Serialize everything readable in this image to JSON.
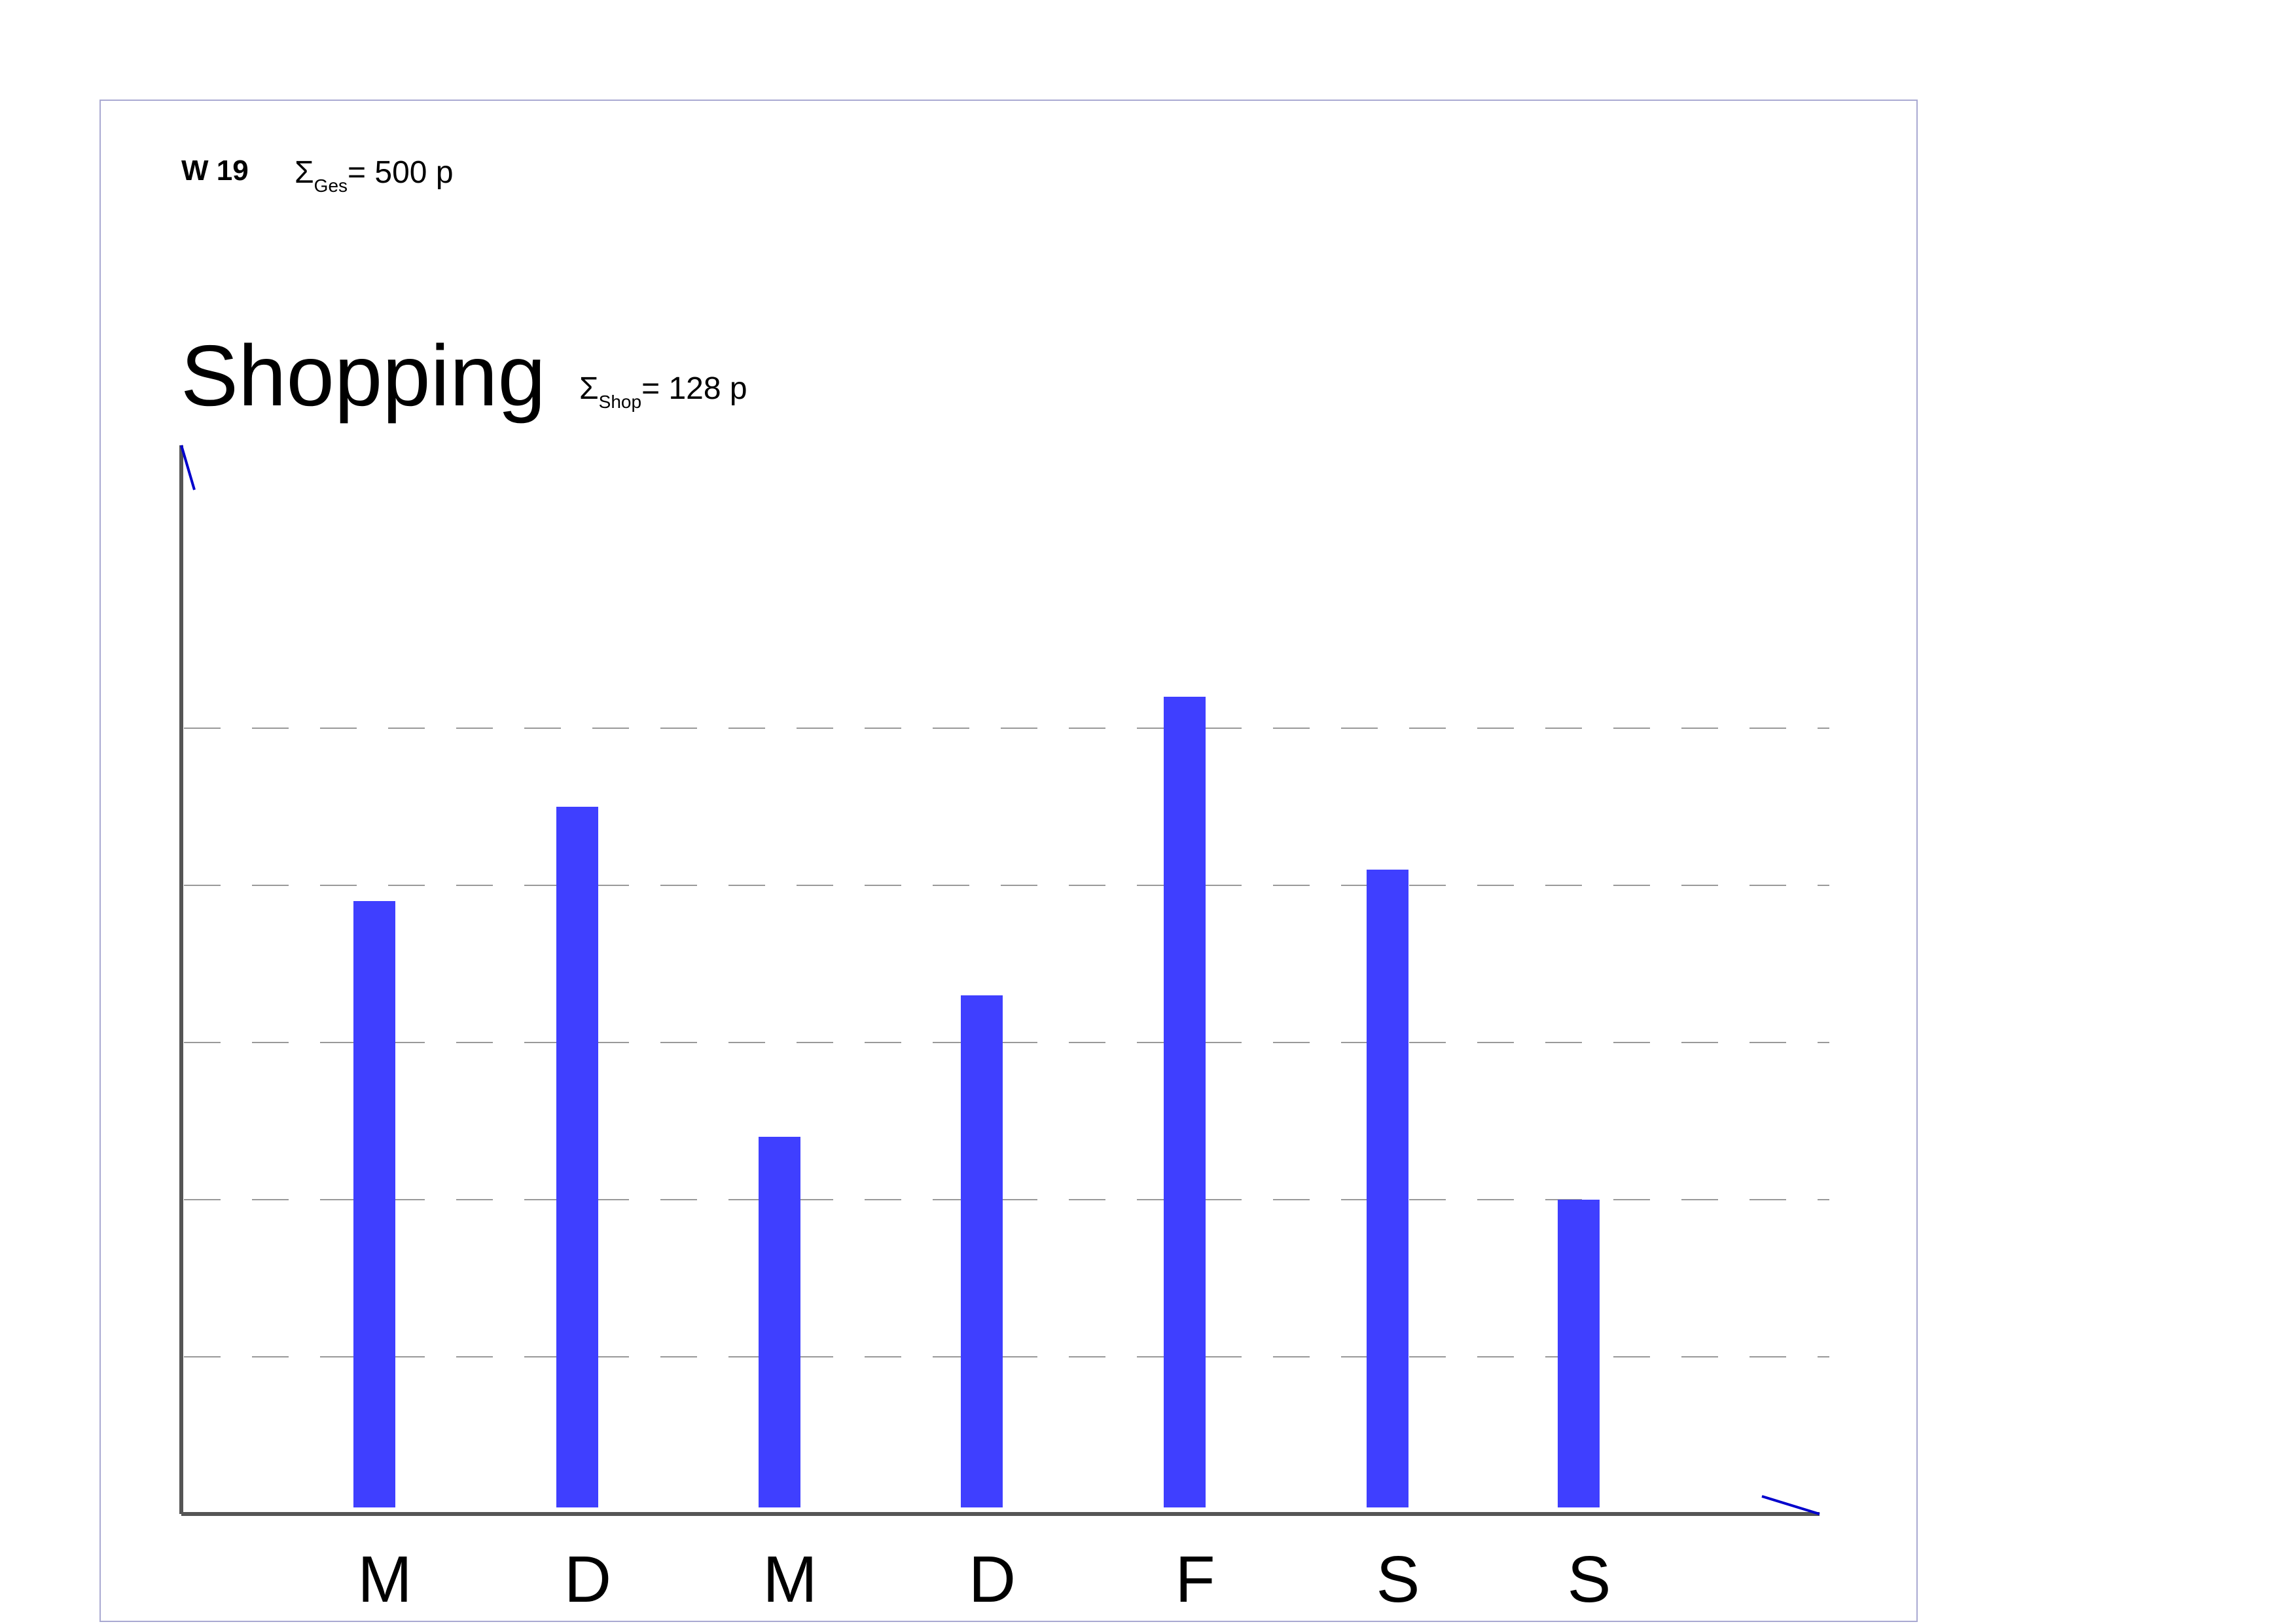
{
  "header": {
    "week": "W 19",
    "total": {
      "symbol": "Σ",
      "subscript": "Ges",
      "value": "=  500 p"
    }
  },
  "title": "Shopping",
  "shop_total": {
    "symbol": "Σ",
    "subscript": "Shop",
    "value": "= 128 p"
  },
  "colors": {
    "bar": "#3f3fff",
    "axis": "#555555",
    "arrow": "#0000cc",
    "grid": "#999999",
    "frame": "#a9a9d2"
  },
  "chart_data": {
    "type": "bar",
    "title": "Shopping",
    "categories": [
      "M",
      "D",
      "M",
      "D",
      "F",
      "S",
      "S"
    ],
    "values": [
      19.5,
      22.5,
      12,
      16.5,
      26,
      20.5,
      10
    ],
    "ylim": [
      0,
      34
    ],
    "gridlines": [
      5,
      10,
      15,
      20,
      25
    ],
    "grid": true,
    "xlabel": "",
    "ylabel": ""
  }
}
